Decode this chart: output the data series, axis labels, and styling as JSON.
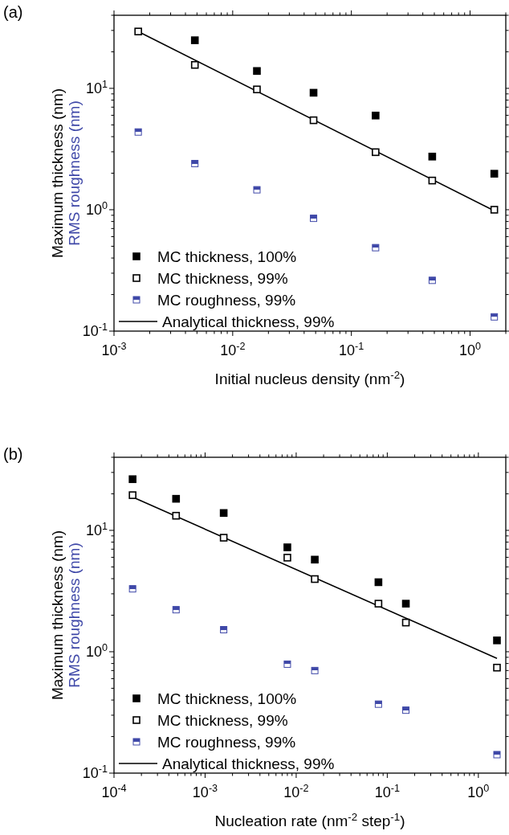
{
  "chart_data": [
    {
      "type": "scatter",
      "title": "(a)",
      "xlabel": "Initial nucleus density (nm$^{-2}$)",
      "ylabel": [
        "Maximum thickness (nm)",
        "RMS roughness (nm)"
      ],
      "log": "xy",
      "marker": "square",
      "legend": "bottom left",
      "grid": false,
      "x": [
        0.0016,
        0.0048,
        0.016,
        0.048,
        0.16,
        0.48,
        1.6
      ],
      "xlim": [
        0.001,
        2
      ],
      "ylim": [
        0.1,
        40
      ],
      "xticks": [
        {
          "value": 0.001,
          "label": "10$^{-3}$"
        },
        {
          "value": 0.002,
          "label": null
        },
        {
          "value": 0.003,
          "label": null
        },
        {
          "value": 0.004,
          "label": null
        },
        {
          "value": 0.005,
          "label": null
        },
        {
          "value": 0.006,
          "label": null
        },
        {
          "value": 0.007,
          "label": null
        },
        {
          "value": 0.008,
          "label": null
        },
        {
          "value": 0.009,
          "label": null
        },
        {
          "value": 0.01,
          "label": "10$^{-2}$"
        },
        {
          "value": 0.02,
          "label": null
        },
        {
          "value": 0.03,
          "label": null
        },
        {
          "value": 0.04,
          "label": null
        },
        {
          "value": 0.05,
          "label": null
        },
        {
          "value": 0.06,
          "label": null
        },
        {
          "value": 0.07,
          "label": null
        },
        {
          "value": 0.08,
          "label": null
        },
        {
          "value": 0.09,
          "label": null
        },
        {
          "value": 0.1,
          "label": "10$^{-1}$"
        },
        {
          "value": 0.2,
          "label": null
        },
        {
          "value": 0.3,
          "label": null
        },
        {
          "value": 0.4,
          "label": null
        },
        {
          "value": 0.5,
          "label": null
        },
        {
          "value": 0.6,
          "label": null
        },
        {
          "value": 0.7,
          "label": null
        },
        {
          "value": 0.8,
          "label": null
        },
        {
          "value": 0.9,
          "label": null
        },
        {
          "value": 1,
          "label": "10$^{0}$"
        },
        {
          "value": 2,
          "label": null
        }
      ],
      "yticks": [
        {
          "value": 0.1,
          "label": "10$^{-1}$"
        },
        {
          "value": 0.2,
          "label": null
        },
        {
          "value": 0.3,
          "label": null
        },
        {
          "value": 0.4,
          "label": null
        },
        {
          "value": 0.5,
          "label": null
        },
        {
          "value": 0.6,
          "label": null
        },
        {
          "value": 0.7,
          "label": null
        },
        {
          "value": 0.8,
          "label": null
        },
        {
          "value": 0.9,
          "label": null
        },
        {
          "value": 1,
          "label": "10$^{0}$"
        },
        {
          "value": 2,
          "label": null
        },
        {
          "value": 3,
          "label": null
        },
        {
          "value": 4,
          "label": null
        },
        {
          "value": 5,
          "label": null
        },
        {
          "value": 6,
          "label": null
        },
        {
          "value": 7,
          "label": null
        },
        {
          "value": 8,
          "label": null
        },
        {
          "value": 9,
          "label": null
        },
        {
          "value": 10,
          "label": "10$^{1}$"
        },
        {
          "value": 20,
          "label": null
        },
        {
          "value": 30,
          "label": null
        },
        {
          "value": 40,
          "label": null
        }
      ],
      "series": [
        {
          "name": "MC thickness, 100%",
          "color": "#000000",
          "values": [
            null,
            24.9,
            13.9,
            9.2,
            5.97,
            2.74,
            1.98
          ]
        },
        {
          "name": "MC thickness, 99%",
          "color": "#000000",
          "values": [
            29.4,
            15.6,
            9.8,
            5.46,
            2.98,
            1.74,
            1.0
          ]
        },
        {
          "name": "MC roughness, 99%",
          "color": "#3f48a8",
          "values": [
            4.37,
            2.4,
            1.46,
            0.85,
            0.487,
            0.262,
            0.131
          ]
        },
        {
          "name": "Analytical thickness, 99%",
          "type": "line",
          "color": "#000000",
          "line_style": "solid",
          "marker": "none",
          "x": [
            0.0016,
            1.6
          ],
          "values": [
            29.4,
            0.98
          ]
        }
      ]
    },
    {
      "type": "scatter",
      "title": "(b)",
      "xlabel": "Nucleation rate (nm$^{-2}$ step$^{-1}$)",
      "ylabel": [
        "Maximum thickness (nm)",
        "RMS roughness (nm)"
      ],
      "log": "xy",
      "marker": "square",
      "legend": "bottom left",
      "grid": false,
      "x": [
        0.00016,
        0.00048,
        0.0016,
        0.008,
        0.016,
        0.08,
        0.16,
        1.6
      ],
      "xlim": [
        0.0001,
        2
      ],
      "ylim": [
        0.1,
        40
      ],
      "xticks": [
        {
          "value": 0.0001,
          "label": "10$^{-4}$"
        },
        {
          "value": 0.0002,
          "label": null
        },
        {
          "value": 0.0003,
          "label": null
        },
        {
          "value": 0.0004,
          "label": null
        },
        {
          "value": 0.0005,
          "label": null
        },
        {
          "value": 0.0006,
          "label": null
        },
        {
          "value": 0.0007,
          "label": null
        },
        {
          "value": 0.0008,
          "label": null
        },
        {
          "value": 0.0009,
          "label": null
        },
        {
          "value": 0.001,
          "label": "10$^{-3}$"
        },
        {
          "value": 0.002,
          "label": null
        },
        {
          "value": 0.003,
          "label": null
        },
        {
          "value": 0.004,
          "label": null
        },
        {
          "value": 0.005,
          "label": null
        },
        {
          "value": 0.006,
          "label": null
        },
        {
          "value": 0.007,
          "label": null
        },
        {
          "value": 0.008,
          "label": null
        },
        {
          "value": 0.009,
          "label": null
        },
        {
          "value": 0.01,
          "label": "10$^{-2}$"
        },
        {
          "value": 0.02,
          "label": null
        },
        {
          "value": 0.03,
          "label": null
        },
        {
          "value": 0.04,
          "label": null
        },
        {
          "value": 0.05,
          "label": null
        },
        {
          "value": 0.06,
          "label": null
        },
        {
          "value": 0.07,
          "label": null
        },
        {
          "value": 0.08,
          "label": null
        },
        {
          "value": 0.09,
          "label": null
        },
        {
          "value": 0.1,
          "label": "10$^{-1}$"
        },
        {
          "value": 0.2,
          "label": null
        },
        {
          "value": 0.3,
          "label": null
        },
        {
          "value": 0.4,
          "label": null
        },
        {
          "value": 0.5,
          "label": null
        },
        {
          "value": 0.6,
          "label": null
        },
        {
          "value": 0.7,
          "label": null
        },
        {
          "value": 0.8,
          "label": null
        },
        {
          "value": 0.9,
          "label": null
        },
        {
          "value": 1,
          "label": "10$^{0}$"
        },
        {
          "value": 2,
          "label": null
        }
      ],
      "yticks": [
        {
          "value": 0.1,
          "label": "10$^{-1}$"
        },
        {
          "value": 0.2,
          "label": null
        },
        {
          "value": 0.3,
          "label": null
        },
        {
          "value": 0.4,
          "label": null
        },
        {
          "value": 0.5,
          "label": null
        },
        {
          "value": 0.6,
          "label": null
        },
        {
          "value": 0.7,
          "label": null
        },
        {
          "value": 0.8,
          "label": null
        },
        {
          "value": 0.9,
          "label": null
        },
        {
          "value": 1,
          "label": "10$^{0}$"
        },
        {
          "value": 2,
          "label": null
        },
        {
          "value": 3,
          "label": null
        },
        {
          "value": 4,
          "label": null
        },
        {
          "value": 5,
          "label": null
        },
        {
          "value": 6,
          "label": null
        },
        {
          "value": 7,
          "label": null
        },
        {
          "value": 8,
          "label": null
        },
        {
          "value": 9,
          "label": null
        },
        {
          "value": 10,
          "label": "10$^{1}$"
        },
        {
          "value": 20,
          "label": null
        },
        {
          "value": 30,
          "label": null
        },
        {
          "value": 40,
          "label": null
        }
      ],
      "series": [
        {
          "name": "MC thickness, 100%",
          "color": "#000000",
          "values": [
            26.4,
            18.2,
            13.9,
            7.25,
            5.74,
            3.74,
            2.49,
            1.24
          ]
        },
        {
          "name": "MC thickness, 99%",
          "color": "#000000",
          "values": [
            19.5,
            13.2,
            8.7,
            5.96,
            3.97,
            2.49,
            1.74,
            0.74
          ]
        },
        {
          "name": "MC roughness, 99%",
          "color": "#3f48a8",
          "values": [
            3.3,
            2.22,
            1.52,
            0.79,
            0.7,
            0.37,
            0.33,
            0.142
          ]
        },
        {
          "name": "Analytical thickness, 99%",
          "type": "line",
          "color": "#000000",
          "line_style": "solid",
          "marker": "none",
          "x": [
            0.00016,
            1.6
          ],
          "values": [
            18.8,
            0.88
          ]
        }
      ]
    }
  ]
}
